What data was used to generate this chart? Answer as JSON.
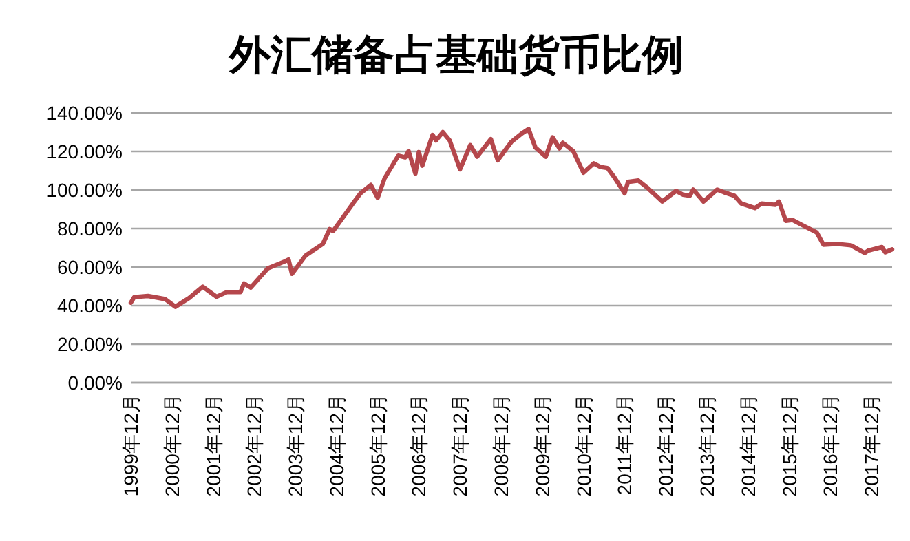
{
  "chart_data": {
    "type": "line",
    "title": "外汇储备占基础货币比例",
    "x": [
      "1999-12",
      "2000-01",
      "2000-05",
      "2000-10",
      "2001-01",
      "2001-05",
      "2001-09",
      "2002-01",
      "2002-04",
      "2002-08",
      "2002-09",
      "2002-11",
      "2003-04",
      "2003-09",
      "2003-10",
      "2003-11",
      "2004-03",
      "2004-08",
      "2004-10",
      "2004-11",
      "2005-05",
      "2005-07",
      "2005-10",
      "2005-12",
      "2006-02",
      "2006-06",
      "2006-08",
      "2006-09",
      "2006-11",
      "2006-12",
      "2007-01",
      "2007-04",
      "2007-05",
      "2007-07",
      "2007-09",
      "2007-12",
      "2008-03",
      "2008-05",
      "2008-09",
      "2008-11",
      "2009-03",
      "2009-06",
      "2009-08",
      "2009-10",
      "2010-01",
      "2010-03",
      "2010-05",
      "2010-06",
      "2010-09",
      "2010-12",
      "2011-03",
      "2011-05",
      "2011-07",
      "2011-09",
      "2011-12",
      "2012-01",
      "2012-04",
      "2012-07",
      "2012-11",
      "2013-03",
      "2013-05",
      "2013-07",
      "2013-08",
      "2013-11",
      "2014-03",
      "2014-05",
      "2014-08",
      "2014-10",
      "2015-02",
      "2015-04",
      "2015-08",
      "2015-09",
      "2015-11",
      "2016-01",
      "2016-04",
      "2016-08",
      "2016-10",
      "2017-02",
      "2017-06",
      "2017-10",
      "2017-11",
      "2018-03",
      "2018-04",
      "2018-06"
    ],
    "series": [
      {
        "color": "#b5474c",
        "values": [
          41.5,
          44.4,
          45,
          43.4,
          39.4,
          43.9,
          49.8,
          44.6,
          47,
          47,
          51.5,
          49.4,
          59.4,
          63,
          63.9,
          56.5,
          66,
          72,
          79.7,
          78.7,
          93.5,
          98.3,
          102.6,
          95.9,
          106,
          117.8,
          116.9,
          120.2,
          108.5,
          119.7,
          112.6,
          128.6,
          125.7,
          130,
          125.7,
          110.7,
          123.3,
          117.3,
          126.4,
          115.4,
          125,
          129.3,
          131.6,
          122,
          117.3,
          127.3,
          121.6,
          124.5,
          120.2,
          109,
          113.8,
          111.9,
          111.4,
          106.6,
          98.3,
          104.2,
          104.9,
          100.6,
          94,
          99.5,
          97.6,
          97,
          100.2,
          94,
          100.2,
          98.8,
          97,
          93,
          90.6,
          93,
          92.3,
          94,
          84,
          84.4,
          81.6,
          78,
          71.6,
          72,
          71.3,
          67.3,
          68.5,
          70.4,
          67.7,
          69.2
        ]
      }
    ],
    "xlim": [
      "1999-12",
      "2018-06"
    ],
    "xticks": [
      {
        "value": "1999-12",
        "label": "1999年12月"
      },
      {
        "value": "2000-12",
        "label": "2000年12月"
      },
      {
        "value": "2001-12",
        "label": "2001年12月"
      },
      {
        "value": "2002-12",
        "label": "2002年12月"
      },
      {
        "value": "2003-12",
        "label": "2003年12月"
      },
      {
        "value": "2004-12",
        "label": "2004年12月"
      },
      {
        "value": "2005-12",
        "label": "2005年12月"
      },
      {
        "value": "2006-12",
        "label": "2006年12月"
      },
      {
        "value": "2007-12",
        "label": "2007年12月"
      },
      {
        "value": "2008-12",
        "label": "2008年12月"
      },
      {
        "value": "2009-12",
        "label": "2009年12月"
      },
      {
        "value": "2010-12",
        "label": "2010年12月"
      },
      {
        "value": "2011-12",
        "label": "2011年12月"
      },
      {
        "value": "2012-12",
        "label": "2012年12月"
      },
      {
        "value": "2013-12",
        "label": "2013年12月"
      },
      {
        "value": "2014-12",
        "label": "2014年12月"
      },
      {
        "value": "2015-12",
        "label": "2015年12月"
      },
      {
        "value": "2016-12",
        "label": "2016年12月"
      },
      {
        "value": "2017-12",
        "label": "2017年12月"
      }
    ],
    "ylim": [
      0,
      140
    ],
    "yticks": [
      {
        "value": 0,
        "label": "0.00%"
      },
      {
        "value": 20,
        "label": "20.00%"
      },
      {
        "value": 40,
        "label": "40.00%"
      },
      {
        "value": 60,
        "label": "60.00%"
      },
      {
        "value": 80,
        "label": "80.00%"
      },
      {
        "value": 100,
        "label": "100.00%"
      },
      {
        "value": 120,
        "label": "120.00%"
      },
      {
        "value": 140,
        "label": "140.00%"
      }
    ],
    "grid": "y",
    "marker": "none",
    "line_style": "solid"
  }
}
